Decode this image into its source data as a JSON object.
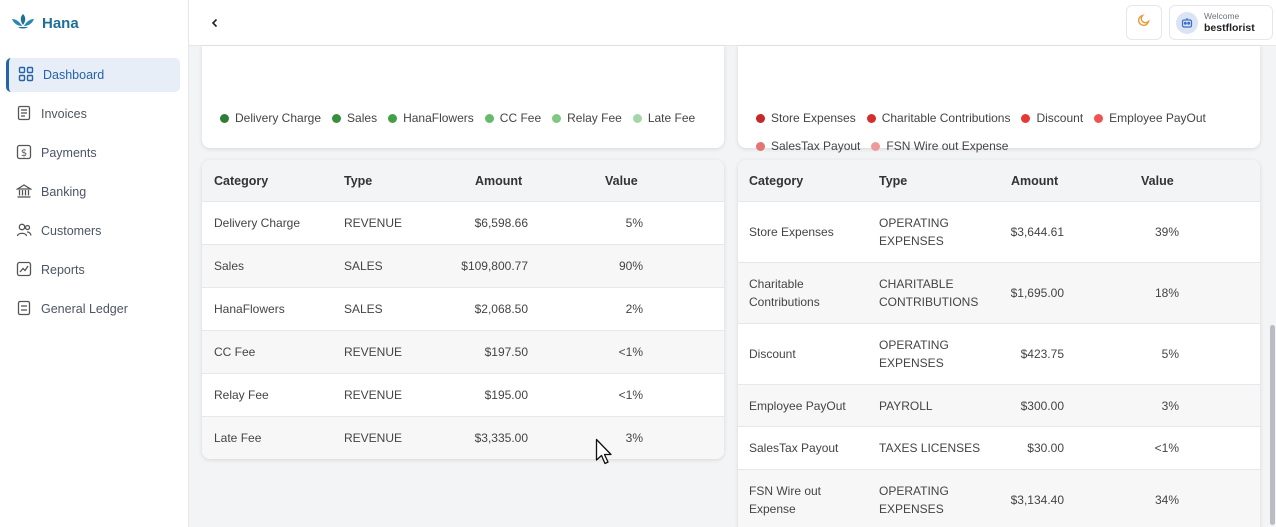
{
  "brand": {
    "name": "Hana"
  },
  "sidebar": {
    "items": [
      {
        "label": "Dashboard",
        "icon": "dashboard-grid-icon",
        "active": true
      },
      {
        "label": "Invoices",
        "icon": "invoice-icon"
      },
      {
        "label": "Payments",
        "icon": "dollar-icon"
      },
      {
        "label": "Banking",
        "icon": "bank-icon"
      },
      {
        "label": "Customers",
        "icon": "users-icon"
      },
      {
        "label": "Reports",
        "icon": "chart-line-icon"
      },
      {
        "label": "General Ledger",
        "icon": "ledger-icon"
      }
    ]
  },
  "header": {
    "back_icon": "chevron-left-icon",
    "theme_icon": "moon-icon",
    "welcome_label": "Welcome",
    "username": "bestflorist"
  },
  "revenue_legend": [
    {
      "label": "Delivery Charge",
      "color": "#2e7d32"
    },
    {
      "label": "Sales",
      "color": "#388e3c"
    },
    {
      "label": "HanaFlowers",
      "color": "#43a047"
    },
    {
      "label": "CC Fee",
      "color": "#66bb6a"
    },
    {
      "label": "Relay Fee",
      "color": "#81c784"
    },
    {
      "label": "Late Fee",
      "color": "#a5d6a7"
    }
  ],
  "expense_legend": [
    {
      "label": "Store Expenses",
      "color": "#c62828"
    },
    {
      "label": "Charitable Contributions",
      "color": "#d32f2f"
    },
    {
      "label": "Discount",
      "color": "#e53935"
    },
    {
      "label": "Employee PayOut",
      "color": "#ef5350"
    },
    {
      "label": "SalesTax Payout",
      "color": "#e57373"
    },
    {
      "label": "FSN Wire out Expense",
      "color": "#ef9a9a"
    }
  ],
  "revenue_table": {
    "headers": [
      "Category",
      "Type",
      "Amount",
      "Value"
    ],
    "rows": [
      {
        "category": "Delivery Charge",
        "type": "REVENUE",
        "amount": "$6,598.66",
        "value": "5%"
      },
      {
        "category": "Sales",
        "type": "SALES",
        "amount": "$109,800.77",
        "value": "90%"
      },
      {
        "category": "HanaFlowers",
        "type": "SALES",
        "amount": "$2,068.50",
        "value": "2%"
      },
      {
        "category": "CC Fee",
        "type": "REVENUE",
        "amount": "$197.50",
        "value": "<1%"
      },
      {
        "category": "Relay Fee",
        "type": "REVENUE",
        "amount": "$195.00",
        "value": "<1%"
      },
      {
        "category": "Late Fee",
        "type": "REVENUE",
        "amount": "$3,335.00",
        "value": "3%"
      }
    ]
  },
  "expense_table": {
    "headers": [
      "Category",
      "Type",
      "Amount",
      "Value"
    ],
    "rows": [
      {
        "category": [
          "Store Expenses"
        ],
        "type": [
          "OPERATING",
          "EXPENSES"
        ],
        "amount": "$3,644.61",
        "value": "39%"
      },
      {
        "category": [
          "Charitable",
          "Contributions"
        ],
        "type": [
          "CHARITABLE",
          "CONTRIBUTIONS"
        ],
        "amount": "$1,695.00",
        "value": "18%"
      },
      {
        "category": [
          "Discount"
        ],
        "type": [
          "OPERATING",
          "EXPENSES"
        ],
        "amount": "$423.75",
        "value": "5%"
      },
      {
        "category": [
          "Employee PayOut"
        ],
        "type": [
          "PAYROLL"
        ],
        "amount": "$300.00",
        "value": "3%"
      },
      {
        "category": [
          "SalesTax Payout"
        ],
        "type": [
          "TAXES LICENSES"
        ],
        "amount": "$30.00",
        "value": "<1%"
      },
      {
        "category": [
          "FSN Wire out",
          "Expense"
        ],
        "type": [
          "OPERATING",
          "EXPENSES"
        ],
        "amount": "$3,134.40",
        "value": "34%"
      }
    ]
  }
}
